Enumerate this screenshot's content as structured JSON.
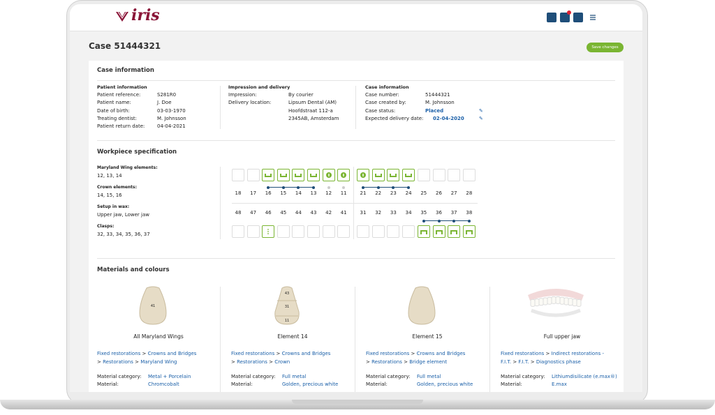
{
  "header": {
    "logo": "iris"
  },
  "page": {
    "title": "Case 51444321",
    "save_button": "Save changes"
  },
  "case_information": {
    "title": "Case information",
    "groups": [
      {
        "title": "Patient information",
        "rows": [
          [
            "Patient reference:",
            "S281R0"
          ],
          [
            "Patient name:",
            "J. Doe"
          ],
          [
            "Date of birth:",
            "03-03-1970"
          ],
          [
            "Treating dentist:",
            "M. Johnsson"
          ],
          [
            "Patient return date:",
            "04-04-2021"
          ]
        ]
      },
      {
        "title": "Impression and delivery",
        "rows": [
          [
            "Impression:",
            "By courier"
          ],
          [
            "Delivery location:",
            "Lipsum Dental (AM)"
          ],
          [
            "",
            "Hoofdstraat 112-a"
          ],
          [
            "",
            "2345AB, Amsterdam"
          ]
        ]
      },
      {
        "title": "Case information",
        "rows": [
          [
            "Case number:",
            "51444321"
          ],
          [
            "Case created by:",
            "M. Johnsson"
          ],
          [
            "Case status:",
            "Placed"
          ],
          [
            "Expected delivery date:",
            "02-04-2020"
          ]
        ]
      }
    ]
  },
  "workpiece": {
    "title": "Workpiece specification",
    "specs": [
      {
        "label": "Maryland Wing elements:",
        "value": "12, 13, 14"
      },
      {
        "label": "Crown elements:",
        "value": "14, 15, 16"
      },
      {
        "label": "Setup in wax:",
        "value": "Upper jaw, Lower jaw"
      },
      {
        "label": "Clasps:",
        "value": "32, 33, 34, 35, 36, 37"
      }
    ],
    "upper_teeth": [
      18,
      17,
      16,
      15,
      14,
      13,
      12,
      11,
      21,
      22,
      23,
      24,
      25,
      26,
      27,
      28
    ],
    "lower_teeth": [
      48,
      47,
      46,
      45,
      44,
      43,
      42,
      41,
      31,
      32,
      33,
      34,
      35,
      36,
      37,
      38
    ]
  },
  "materials": {
    "title": "Materials and colours",
    "items": [
      {
        "image_labels": [
          "41"
        ],
        "title": "All Maryland Wings",
        "path": [
          "Fixed restorations",
          "Crowns and Bridges",
          "Restorations",
          "Maryland Wing"
        ],
        "rows": [
          [
            "Material category:",
            "Metal + Porcelain"
          ],
          [
            "Material:",
            "Chromcobalt"
          ]
        ]
      },
      {
        "image_labels": [
          "43",
          "31",
          "11"
        ],
        "title": "Element 14",
        "path": [
          "Fixed restorations",
          "Crowns and Bridges",
          "Restorations",
          "Crown"
        ],
        "rows": [
          [
            "Material category:",
            "Full metal"
          ],
          [
            "Material:",
            "Golden, precious white"
          ]
        ]
      },
      {
        "image_labels": [],
        "title": "Element 15",
        "path": [
          "Fixed restorations",
          "Crowns and Bridges",
          "Restorations",
          "Bridge element"
        ],
        "rows": [
          [
            "Material category:",
            "Full metal"
          ],
          [
            "Material:",
            "Golden, precious white"
          ]
        ]
      },
      {
        "image_labels": [],
        "title": "Full upper jaw",
        "path": [
          "Fixed restorations",
          "Indirect restorations - F.I.T.",
          "F.I.T.",
          "Diagnostics phase"
        ],
        "rows": [
          [
            "Material category:",
            "Lithiumdisilicate (e.max®)"
          ],
          [
            "Material:",
            "E.max"
          ]
        ]
      }
    ]
  }
}
